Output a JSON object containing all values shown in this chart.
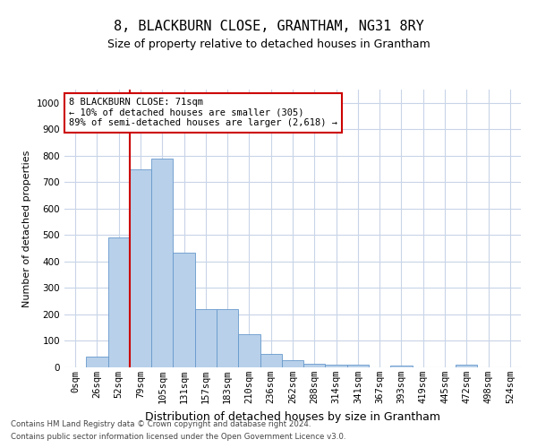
{
  "title": "8, BLACKBURN CLOSE, GRANTHAM, NG31 8RY",
  "subtitle": "Size of property relative to detached houses in Grantham",
  "xlabel": "Distribution of detached houses by size in Grantham",
  "ylabel": "Number of detached properties",
  "bar_color": "#b8d0ea",
  "bar_edge_color": "#6699cc",
  "categories": [
    "0sqm",
    "26sqm",
    "52sqm",
    "79sqm",
    "105sqm",
    "131sqm",
    "157sqm",
    "183sqm",
    "210sqm",
    "236sqm",
    "262sqm",
    "288sqm",
    "314sqm",
    "341sqm",
    "367sqm",
    "393sqm",
    "419sqm",
    "445sqm",
    "472sqm",
    "498sqm",
    "524sqm"
  ],
  "values": [
    0,
    40,
    490,
    750,
    790,
    435,
    220,
    220,
    125,
    50,
    27,
    14,
    10,
    10,
    0,
    8,
    0,
    0,
    11,
    0,
    0
  ],
  "ylim": [
    0,
    1050
  ],
  "yticks": [
    0,
    100,
    200,
    300,
    400,
    500,
    600,
    700,
    800,
    900,
    1000
  ],
  "property_line_x": 2.5,
  "annotation_title": "8 BLACKBURN CLOSE: 71sqm",
  "annotation_line1": "← 10% of detached houses are smaller (305)",
  "annotation_line2": "89% of semi-detached houses are larger (2,618) →",
  "vline_color": "#cc0000",
  "grid_color": "#c8d4e8",
  "footer1": "Contains HM Land Registry data © Crown copyright and database right 2024.",
  "footer2": "Contains public sector information licensed under the Open Government Licence v3.0.",
  "bg_color": "#ffffff",
  "title_fontsize": 11,
  "subtitle_fontsize": 9,
  "xlabel_fontsize": 9,
  "ylabel_fontsize": 8,
  "tick_fontsize": 7.5
}
